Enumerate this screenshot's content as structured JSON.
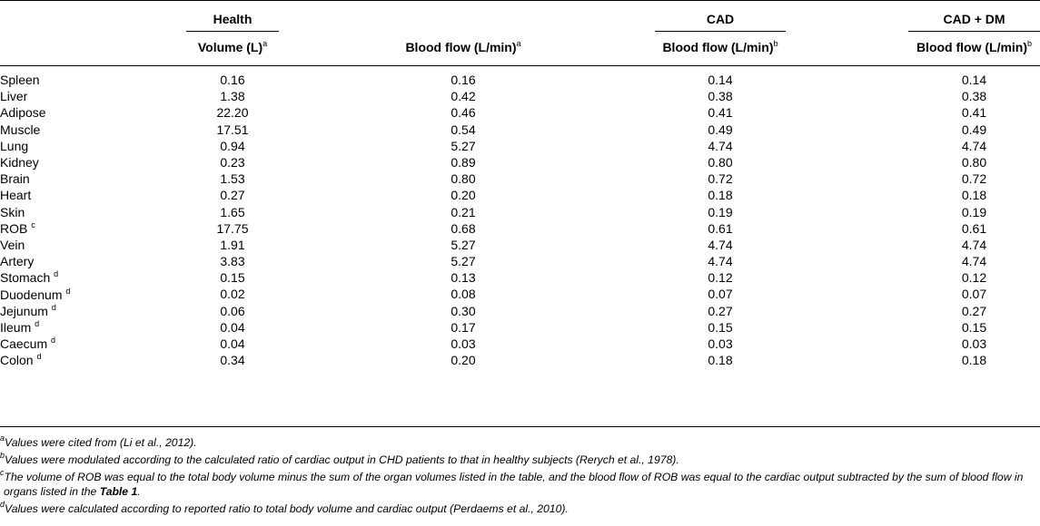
{
  "header": {
    "groups": [
      {
        "label": "Health"
      },
      {
        "label": "CAD"
      },
      {
        "label": "CAD + DM"
      }
    ],
    "columns": [
      {
        "label": "Volume (L)",
        "note": "a"
      },
      {
        "label": "Blood flow (L/min)",
        "note": "a"
      },
      {
        "label": "Blood flow (L/min)",
        "note": "b"
      },
      {
        "label": "Blood flow (L/min)",
        "note": "b"
      }
    ]
  },
  "rows": [
    {
      "organ": "Spleen",
      "note": "",
      "volume": "0.16",
      "flow_health": "0.16",
      "flow_cad": "0.14",
      "flow_caddm": "0.14"
    },
    {
      "organ": "Liver",
      "note": "",
      "volume": "1.38",
      "flow_health": "0.42",
      "flow_cad": "0.38",
      "flow_caddm": "0.38"
    },
    {
      "organ": "Adipose",
      "note": "",
      "volume": "22.20",
      "flow_health": "0.46",
      "flow_cad": "0.41",
      "flow_caddm": "0.41"
    },
    {
      "organ": "Muscle",
      "note": "",
      "volume": "17.51",
      "flow_health": "0.54",
      "flow_cad": "0.49",
      "flow_caddm": "0.49"
    },
    {
      "organ": "Lung",
      "note": "",
      "volume": "0.94",
      "flow_health": "5.27",
      "flow_cad": "4.74",
      "flow_caddm": "4.74"
    },
    {
      "organ": "Kidney",
      "note": "",
      "volume": "0.23",
      "flow_health": "0.89",
      "flow_cad": "0.80",
      "flow_caddm": "0.80"
    },
    {
      "organ": "Brain",
      "note": "",
      "volume": "1.53",
      "flow_health": "0.80",
      "flow_cad": "0.72",
      "flow_caddm": "0.72"
    },
    {
      "organ": "Heart",
      "note": "",
      "volume": "0.27",
      "flow_health": "0.20",
      "flow_cad": "0.18",
      "flow_caddm": "0.18"
    },
    {
      "organ": "Skin",
      "note": "",
      "volume": "1.65",
      "flow_health": "0.21",
      "flow_cad": "0.19",
      "flow_caddm": "0.19"
    },
    {
      "organ": "ROB",
      "note": "c",
      "volume": "17.75",
      "flow_health": "0.68",
      "flow_cad": "0.61",
      "flow_caddm": "0.61"
    },
    {
      "organ": "Vein",
      "note": "",
      "volume": "1.91",
      "flow_health": "5.27",
      "flow_cad": "4.74",
      "flow_caddm": "4.74"
    },
    {
      "organ": "Artery",
      "note": "",
      "volume": "3.83",
      "flow_health": "5.27",
      "flow_cad": "4.74",
      "flow_caddm": "4.74"
    },
    {
      "organ": "Stomach",
      "note": "d",
      "volume": "0.15",
      "flow_health": "0.13",
      "flow_cad": "0.12",
      "flow_caddm": "0.12"
    },
    {
      "organ": "Duodenum",
      "note": "d",
      "volume": "0.02",
      "flow_health": "0.08",
      "flow_cad": "0.07",
      "flow_caddm": "0.07"
    },
    {
      "organ": "Jejunum",
      "note": "d",
      "volume": "0.06",
      "flow_health": "0.30",
      "flow_cad": "0.27",
      "flow_caddm": "0.27"
    },
    {
      "organ": "Ileum",
      "note": "d",
      "volume": "0.04",
      "flow_health": "0.17",
      "flow_cad": "0.15",
      "flow_caddm": "0.15"
    },
    {
      "organ": "Caecum",
      "note": "d",
      "volume": "0.04",
      "flow_health": "0.03",
      "flow_cad": "0.03",
      "flow_caddm": "0.03"
    },
    {
      "organ": "Colon",
      "note": "d",
      "volume": "0.34",
      "flow_health": "0.20",
      "flow_cad": "0.18",
      "flow_caddm": "0.18"
    }
  ],
  "footnotes": {
    "a": {
      "mark": "a",
      "text": "Values were cited from (Li et al., 2012)."
    },
    "b": {
      "mark": "b",
      "text": "Values were modulated according to the calculated ratio of cardiac output in CHD patients to that in healthy subjects (Rerych et al., 1978)."
    },
    "c": {
      "mark": "c",
      "text_before": "The volume of ROB was equal to the total body volume minus the sum of the organ volumes listed in the table, and the blood flow of ROB was equal to the cardiac output subtracted by the sum of blood flow in organs listed in the ",
      "bold_ref": "Table 1",
      "text_after": "."
    },
    "d": {
      "mark": "d",
      "text": "Values were calculated according to reported ratio to total body volume and cardiac output (Perdaems et al., 2010)."
    }
  }
}
